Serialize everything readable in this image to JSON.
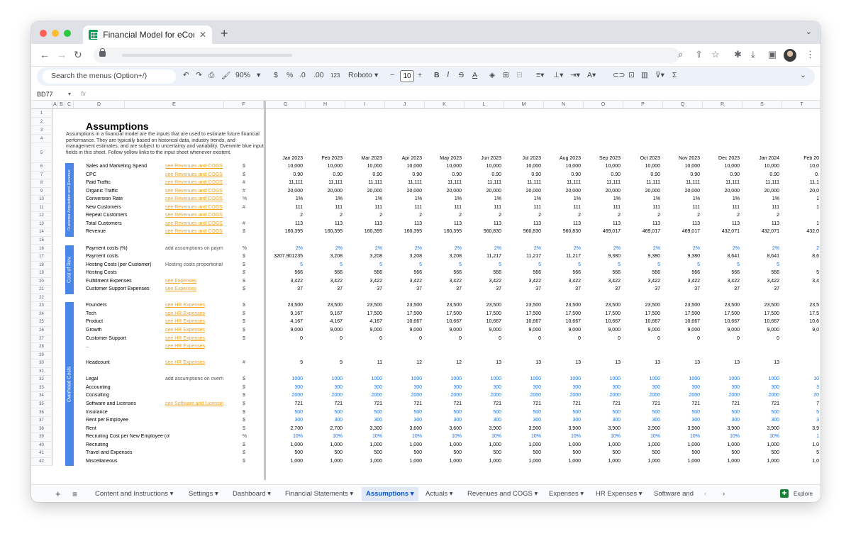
{
  "browser": {
    "tab_title": "Financial Model for eCommerce",
    "tab_close": "✕",
    "new_tab": "+"
  },
  "toolbar": {
    "search_menus": "Search the menus (Option+/)",
    "zoom": "90%",
    "currency": "$",
    "percent": "%",
    "dec_decimals": ".0",
    "inc_decimals": ".00",
    "format_more": "123",
    "font": "Roboto",
    "font_size": "10",
    "bold": "B",
    "italic": "I",
    "strike": "S",
    "text_color": "A",
    "sum": "Σ"
  },
  "formula_bar": {
    "cell_ref": "BD77",
    "fx": "fx"
  },
  "columns": [
    "A",
    "B",
    "C",
    "D",
    "E",
    "F",
    "G",
    "H",
    "I",
    "J",
    "K",
    "L",
    "M",
    "N",
    "O",
    "P",
    "Q",
    "R",
    "S",
    "T"
  ],
  "months": [
    "Jan 2023",
    "Feb 2023",
    "Mar 2023",
    "Apr 2023",
    "May 2023",
    "Jun 2023",
    "Jul 2023",
    "Aug 2023",
    "Sep 2023",
    "Oct 2023",
    "Nov 2023",
    "Dec 2023",
    "Jan 2024",
    "Feb 20"
  ],
  "sheet": {
    "title": "Assumptions",
    "description": "Assumptions in a financial model are the inputs that are used to estimate future financial performance. They are typically based on historical data, industry trends, and management estimates, and are subject to uncertainty and variability. Overwrite blue input fields in this sheet. Follow yellow links to the input sheet whenever existent."
  },
  "sections": [
    {
      "label": "Customer Acquisition and Revenue"
    },
    {
      "label": "Cost of Rev."
    },
    {
      "label": "Overhead Costs"
    }
  ],
  "rows": [
    {
      "n": "1"
    },
    {
      "n": "2"
    },
    {
      "n": "3"
    },
    {
      "n": "4"
    },
    {
      "n": "5"
    },
    {
      "n": "6",
      "label": "Sales and Marketing Spend",
      "ref": "see Revenues and COGS",
      "unit": "$",
      "vals": [
        "10,000",
        "10,000",
        "10,000",
        "10,000",
        "10,000",
        "10,000",
        "10,000",
        "10,000",
        "10,000",
        "10,000",
        "10,000",
        "10,000",
        "10,000",
        "10,0"
      ]
    },
    {
      "n": "7",
      "label": "CPC",
      "ref": "see Revenues and COGS",
      "unit": "$",
      "vals": [
        "0.90",
        "0.90",
        "0.90",
        "0.90",
        "0.90",
        "0.90",
        "0.90",
        "0.90",
        "0.90",
        "0.90",
        "0.90",
        "0.90",
        "0.90",
        "0."
      ]
    },
    {
      "n": "8",
      "label": "Paid Traffic",
      "ref": "see Revenues and COGS",
      "unit": "#",
      "vals": [
        "11,111",
        "11,111",
        "11,111",
        "11,111",
        "11,111",
        "11,111",
        "11,111",
        "11,111",
        "11,111",
        "11,111",
        "11,111",
        "11,111",
        "11,111",
        "11,1"
      ]
    },
    {
      "n": "9",
      "label": "Organic Traffic",
      "ref": "see Revenues and COGS",
      "unit": "#",
      "vals": [
        "20,000",
        "20,000",
        "20,000",
        "20,000",
        "20,000",
        "20,000",
        "20,000",
        "20,000",
        "20,000",
        "20,000",
        "20,000",
        "20,000",
        "20,000",
        "20,0"
      ]
    },
    {
      "n": "10",
      "label": "Conversion Rate",
      "ref": "see Revenues and COGS",
      "unit": "%",
      "vals": [
        "1%",
        "1%",
        "1%",
        "1%",
        "1%",
        "1%",
        "1%",
        "1%",
        "1%",
        "1%",
        "1%",
        "1%",
        "1%",
        "1"
      ]
    },
    {
      "n": "11",
      "label": "New Customers",
      "ref": "see Revenues and COGS",
      "unit": "#",
      "vals": [
        "111",
        "111",
        "111",
        "111",
        "111",
        "111",
        "111",
        "111",
        "111",
        "111",
        "111",
        "111",
        "111",
        "1"
      ]
    },
    {
      "n": "12",
      "label": "Repeat Customers",
      "ref": "see Revenues and COGS",
      "unit": "",
      "vals": [
        "2",
        "2",
        "2",
        "2",
        "2",
        "2",
        "2",
        "2",
        "2",
        "2",
        "2",
        "2",
        "2",
        ""
      ]
    },
    {
      "n": "13",
      "label": "Total Customers",
      "ref": "see Revenues and COGS",
      "unit": "#",
      "vals": [
        "113",
        "113",
        "113",
        "113",
        "113",
        "113",
        "113",
        "113",
        "113",
        "113",
        "113",
        "113",
        "113",
        "1"
      ]
    },
    {
      "n": "14",
      "label": "Revenue",
      "ref": "see Revenues and COGS",
      "unit": "$",
      "vals": [
        "160,395",
        "160,395",
        "160,395",
        "160,395",
        "160,395",
        "560,830",
        "560,830",
        "560,830",
        "469,017",
        "469,017",
        "469,017",
        "432,071",
        "432,071",
        "432,0"
      ]
    },
    {
      "n": "15"
    },
    {
      "n": "16",
      "label": "Payment costs (%)",
      "note": "add assumptions on payment",
      "unit": "%",
      "blue": true,
      "vals": [
        "2%",
        "2%",
        "2%",
        "2%",
        "2%",
        "2%",
        "2%",
        "2%",
        "2%",
        "2%",
        "2%",
        "2%",
        "2%",
        "2"
      ]
    },
    {
      "n": "17",
      "label": "Payment costs",
      "unit": "$",
      "vals": [
        "3207.901235",
        "3,208",
        "3,208",
        "3,208",
        "3,208",
        "11,217",
        "11,217",
        "11,217",
        "9,380",
        "9,380",
        "9,380",
        "8,641",
        "8,641",
        "8,6"
      ]
    },
    {
      "n": "18",
      "label": "Hosting Costs (per Customer)",
      "note": "Hosting costs proportional",
      "unit": "$",
      "blue": true,
      "vals": [
        "5",
        "5",
        "5",
        "5",
        "5",
        "5",
        "5",
        "5",
        "5",
        "5",
        "5",
        "5",
        "5",
        ""
      ]
    },
    {
      "n": "19",
      "label": "Hosting Costs",
      "unit": "$",
      "vals": [
        "566",
        "566",
        "566",
        "566",
        "566",
        "566",
        "566",
        "566",
        "566",
        "566",
        "566",
        "566",
        "566",
        "5"
      ]
    },
    {
      "n": "20",
      "label": "Fulfillment Expenses",
      "ref": "see Expenses",
      "unit": "$",
      "vals": [
        "3,422",
        "3,422",
        "3,422",
        "3,422",
        "3,422",
        "3,422",
        "3,422",
        "3,422",
        "3,422",
        "3,422",
        "3,422",
        "3,422",
        "3,422",
        "3,4"
      ]
    },
    {
      "n": "21",
      "label": "Customer Support Expenses",
      "ref": "see Expenses",
      "unit": "$",
      "vals": [
        "37",
        "37",
        "37",
        "37",
        "37",
        "37",
        "37",
        "37",
        "37",
        "37",
        "37",
        "37",
        "37",
        ""
      ]
    },
    {
      "n": "22"
    },
    {
      "n": "23",
      "label": "Founders",
      "ref": "see HR Expenses",
      "unit": "$",
      "vals": [
        "23,500",
        "23,500",
        "23,500",
        "23,500",
        "23,500",
        "23,500",
        "23,500",
        "23,500",
        "23,500",
        "23,500",
        "23,500",
        "23,500",
        "23,500",
        "23,5"
      ]
    },
    {
      "n": "24",
      "label": "Tech",
      "ref": "see HR Expenses",
      "unit": "$",
      "vals": [
        "9,167",
        "9,167",
        "17,500",
        "17,500",
        "17,500",
        "17,500",
        "17,500",
        "17,500",
        "17,500",
        "17,500",
        "17,500",
        "17,500",
        "17,500",
        "17,5"
      ]
    },
    {
      "n": "25",
      "label": "Product",
      "ref": "see HR Expenses",
      "unit": "$",
      "vals": [
        "4,167",
        "4,167",
        "4,167",
        "10,667",
        "10,667",
        "10,667",
        "10,667",
        "10,667",
        "10,667",
        "10,667",
        "10,667",
        "10,667",
        "10,667",
        "10,6"
      ]
    },
    {
      "n": "26",
      "label": "Growth",
      "ref": "see HR Expenses",
      "unit": "$",
      "vals": [
        "9,000",
        "9,000",
        "9,000",
        "9,000",
        "9,000",
        "9,000",
        "9,000",
        "9,000",
        "9,000",
        "9,000",
        "9,000",
        "9,000",
        "9,000",
        "9,0"
      ]
    },
    {
      "n": "27",
      "label": "Customer Support",
      "ref": "see HR Expenses",
      "unit": "$",
      "vals": [
        "0",
        "0",
        "0",
        "0",
        "0",
        "0",
        "0",
        "0",
        "0",
        "0",
        "0",
        "0",
        "0",
        ""
      ]
    },
    {
      "n": "28",
      "label": "..",
      "ref": "see HR Expenses",
      "unit": "",
      "vals": []
    },
    {
      "n": "29"
    },
    {
      "n": "30",
      "label": "Headcount",
      "ref": "see HR Expenses",
      "unit": "#",
      "vals": [
        "9",
        "9",
        "11",
        "12",
        "12",
        "13",
        "13",
        "13",
        "13",
        "13",
        "13",
        "13",
        "13",
        ""
      ]
    },
    {
      "n": "31"
    },
    {
      "n": "32",
      "label": "Legal",
      "note": "add assumptions on overhead",
      "unit": "$",
      "blue": true,
      "vals": [
        "1000",
        "1000",
        "1000",
        "1000",
        "1000",
        "1000",
        "1000",
        "1000",
        "1000",
        "1000",
        "1000",
        "1000",
        "1000",
        "10"
      ]
    },
    {
      "n": "33",
      "label": "Accounting",
      "unit": "$",
      "blue": true,
      "vals": [
        "300",
        "300",
        "300",
        "300",
        "300",
        "300",
        "300",
        "300",
        "300",
        "300",
        "300",
        "300",
        "300",
        "3"
      ]
    },
    {
      "n": "34",
      "label": "Consulting",
      "unit": "$",
      "blue": true,
      "vals": [
        "2000",
        "2000",
        "2000",
        "2000",
        "2000",
        "2000",
        "2000",
        "2000",
        "2000",
        "2000",
        "2000",
        "2000",
        "2000",
        "20"
      ]
    },
    {
      "n": "35",
      "label": "Software and Licenses",
      "ref": "see Software and Licenses",
      "unit": "$",
      "vals": [
        "721",
        "721",
        "721",
        "721",
        "721",
        "721",
        "721",
        "721",
        "721",
        "721",
        "721",
        "721",
        "721",
        "7"
      ]
    },
    {
      "n": "36",
      "label": "Insurance",
      "unit": "$",
      "blue": true,
      "vals": [
        "500",
        "500",
        "500",
        "500",
        "500",
        "500",
        "500",
        "500",
        "500",
        "500",
        "500",
        "500",
        "500",
        "5"
      ]
    },
    {
      "n": "37",
      "label": "Rent per Employee",
      "unit": "$",
      "blue": true,
      "vals": [
        "300",
        "300",
        "300",
        "300",
        "300",
        "300",
        "300",
        "300",
        "300",
        "300",
        "300",
        "300",
        "300",
        "3"
      ]
    },
    {
      "n": "38",
      "label": "Rent",
      "unit": "$",
      "vals": [
        "2,700",
        "2,700",
        "3,300",
        "3,600",
        "3,600",
        "3,900",
        "3,900",
        "3,900",
        "3,900",
        "3,900",
        "3,900",
        "3,900",
        "3,900",
        "3,9"
      ]
    },
    {
      "n": "39",
      "label": "Recruiting Cost per New Employee (of yearly HR costs of em",
      "unit": "%",
      "blue": true,
      "vals": [
        "10%",
        "10%",
        "10%",
        "10%",
        "10%",
        "10%",
        "10%",
        "10%",
        "10%",
        "10%",
        "10%",
        "10%",
        "10%",
        "1"
      ]
    },
    {
      "n": "40",
      "label": "Recruiting",
      "unit": "$",
      "vals": [
        "1,000",
        "1,000",
        "1,000",
        "1,000",
        "1,000",
        "1,000",
        "1,000",
        "1,000",
        "1,000",
        "1,000",
        "1,000",
        "1,000",
        "1,000",
        "1,0"
      ]
    },
    {
      "n": "41",
      "label": "Travel and Expenses",
      "unit": "$",
      "vals": [
        "500",
        "500",
        "500",
        "500",
        "500",
        "500",
        "500",
        "500",
        "500",
        "500",
        "500",
        "500",
        "500",
        "5"
      ]
    },
    {
      "n": "42",
      "label": "Miscellaneous",
      "unit": "$",
      "vals": [
        "1,000",
        "1,000",
        "1,000",
        "1,000",
        "1,000",
        "1,000",
        "1,000",
        "1,000",
        "1,000",
        "1,000",
        "1,000",
        "1,000",
        "1,000",
        "1,0"
      ]
    }
  ],
  "sheet_tabs": [
    {
      "label": "Content and Instructions ▾"
    },
    {
      "label": "Settings ▾"
    },
    {
      "label": "Dashboard ▾"
    },
    {
      "label": "Financial Statements ▾"
    },
    {
      "label": "Assumptions ▾",
      "active": true
    },
    {
      "label": "Actuals ▾"
    },
    {
      "label": "Revenues and COGS ▾"
    },
    {
      "label": "Expenses ▾"
    },
    {
      "label": "HR Expenses ▾"
    },
    {
      "label": "Software and"
    }
  ],
  "explore_label": "Explore",
  "colors": {
    "accent_blue": "#4a86e8",
    "input_blue": "#1a73e8",
    "link_yellow": "#f0a21a",
    "sheets_green": "#0f9d58"
  }
}
